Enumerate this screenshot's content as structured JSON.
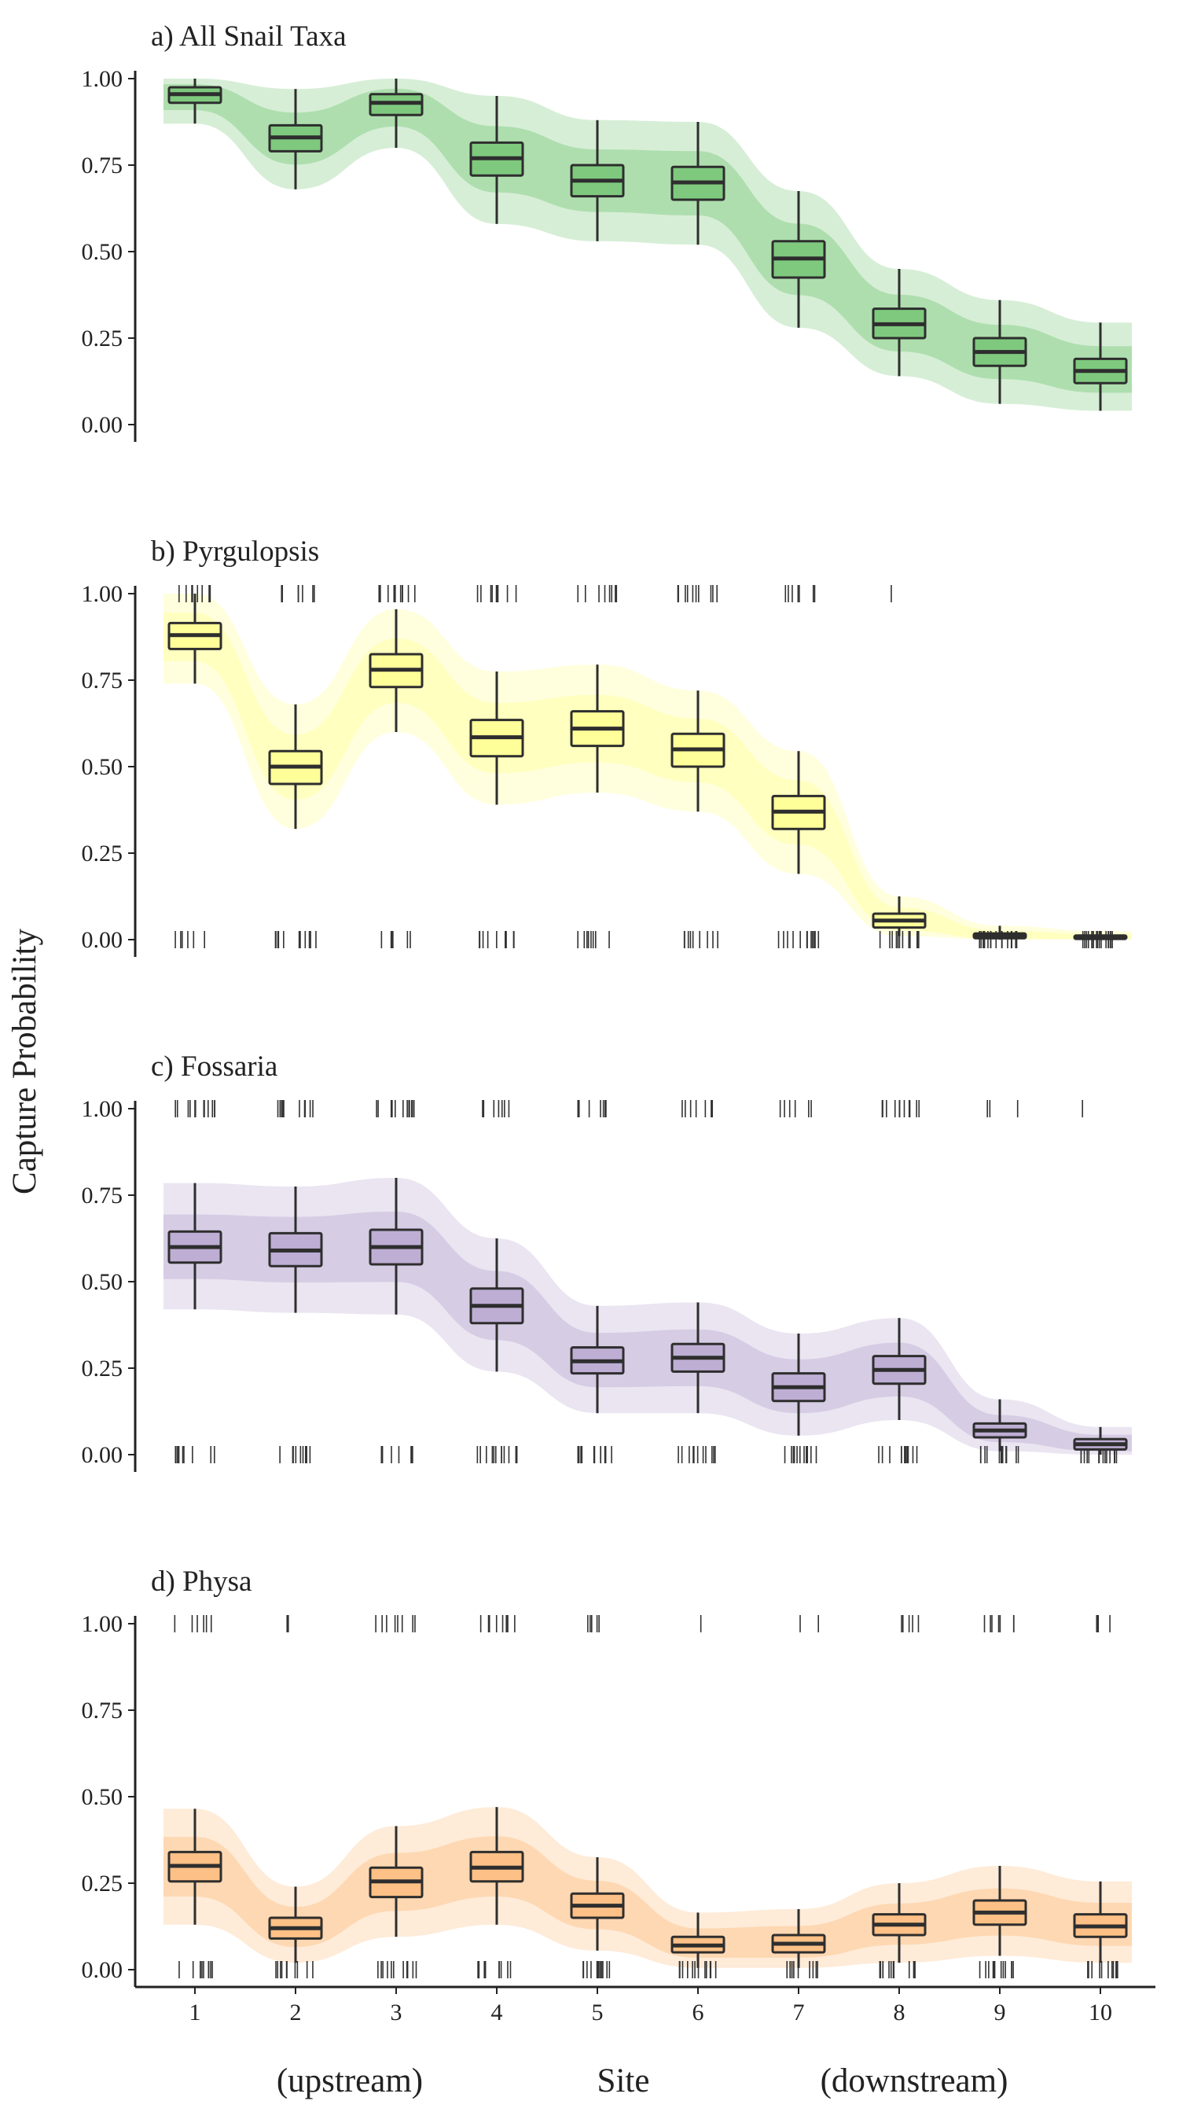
{
  "chart_data": {
    "type": "box",
    "ylabel": "Capture Probability",
    "xlabel": "Site",
    "xlabel_left": "(upstream)",
    "xlabel_right": "(downstream)",
    "x_ticks": [
      "1",
      "2",
      "3",
      "4",
      "5",
      "6",
      "7",
      "8",
      "9",
      "10"
    ],
    "y_ticks": [
      "0.00",
      "0.25",
      "0.50",
      "0.75",
      "1.00"
    ],
    "ylim": [
      0,
      1
    ],
    "grid": false,
    "panels": [
      {
        "title": "a) All Snail Taxa",
        "color": "#7fc97f",
        "boxes": [
          {
            "site": 1,
            "whisker_low": 0.87,
            "q1": 0.93,
            "median": 0.955,
            "q3": 0.975,
            "whisker_high": 1.0
          },
          {
            "site": 2,
            "whisker_low": 0.68,
            "q1": 0.79,
            "median": 0.83,
            "q3": 0.865,
            "whisker_high": 0.97
          },
          {
            "site": 3,
            "whisker_low": 0.8,
            "q1": 0.895,
            "median": 0.93,
            "q3": 0.955,
            "whisker_high": 1.0
          },
          {
            "site": 4,
            "whisker_low": 0.58,
            "q1": 0.72,
            "median": 0.77,
            "q3": 0.815,
            "whisker_high": 0.95
          },
          {
            "site": 5,
            "whisker_low": 0.53,
            "q1": 0.66,
            "median": 0.705,
            "q3": 0.75,
            "whisker_high": 0.88
          },
          {
            "site": 6,
            "whisker_low": 0.52,
            "q1": 0.65,
            "median": 0.7,
            "q3": 0.745,
            "whisker_high": 0.875
          },
          {
            "site": 7,
            "whisker_low": 0.28,
            "q1": 0.425,
            "median": 0.48,
            "q3": 0.53,
            "whisker_high": 0.675
          },
          {
            "site": 8,
            "whisker_low": 0.14,
            "q1": 0.25,
            "median": 0.29,
            "q3": 0.335,
            "whisker_high": 0.45
          },
          {
            "site": 9,
            "whisker_low": 0.06,
            "q1": 0.17,
            "median": 0.21,
            "q3": 0.25,
            "whisker_high": 0.36
          },
          {
            "site": 10,
            "whisker_low": 0.04,
            "q1": 0.12,
            "median": 0.155,
            "q3": 0.19,
            "whisker_high": 0.295
          }
        ],
        "rug_top_counts": [
          0,
          0,
          0,
          0,
          0,
          0,
          0,
          0,
          0,
          0
        ],
        "rug_bottom_counts": [
          0,
          0,
          0,
          0,
          0,
          0,
          0,
          0,
          0,
          0
        ]
      },
      {
        "title": "b) Pyrgulopsis",
        "color": "#ffff99",
        "boxes": [
          {
            "site": 1,
            "whisker_low": 0.74,
            "q1": 0.84,
            "median": 0.88,
            "q3": 0.915,
            "whisker_high": 1.0
          },
          {
            "site": 2,
            "whisker_low": 0.32,
            "q1": 0.45,
            "median": 0.5,
            "q3": 0.545,
            "whisker_high": 0.68
          },
          {
            "site": 3,
            "whisker_low": 0.6,
            "q1": 0.73,
            "median": 0.78,
            "q3": 0.825,
            "whisker_high": 0.955
          },
          {
            "site": 4,
            "whisker_low": 0.39,
            "q1": 0.53,
            "median": 0.585,
            "q3": 0.635,
            "whisker_high": 0.775
          },
          {
            "site": 5,
            "whisker_low": 0.425,
            "q1": 0.56,
            "median": 0.61,
            "q3": 0.66,
            "whisker_high": 0.795
          },
          {
            "site": 6,
            "whisker_low": 0.37,
            "q1": 0.5,
            "median": 0.55,
            "q3": 0.595,
            "whisker_high": 0.72
          },
          {
            "site": 7,
            "whisker_low": 0.19,
            "q1": 0.32,
            "median": 0.37,
            "q3": 0.415,
            "whisker_high": 0.545
          },
          {
            "site": 8,
            "whisker_low": 0.01,
            "q1": 0.035,
            "median": 0.055,
            "q3": 0.075,
            "whisker_high": 0.125
          },
          {
            "site": 9,
            "whisker_low": 0.0,
            "q1": 0.004,
            "median": 0.01,
            "q3": 0.018,
            "whisker_high": 0.04
          },
          {
            "site": 10,
            "whisker_low": 0.0,
            "q1": 0.002,
            "median": 0.006,
            "q3": 0.012,
            "whisker_high": 0.025
          }
        ],
        "rug_top_counts": [
          10,
          8,
          11,
          9,
          10,
          10,
          7,
          1,
          0,
          0
        ],
        "rug_bottom_counts": [
          6,
          12,
          6,
          10,
          8,
          9,
          12,
          12,
          16,
          18
        ]
      },
      {
        "title": "c) Fossaria",
        "color": "#beaed4",
        "boxes": [
          {
            "site": 1,
            "whisker_low": 0.42,
            "q1": 0.555,
            "median": 0.6,
            "q3": 0.645,
            "whisker_high": 0.785
          },
          {
            "site": 2,
            "whisker_low": 0.41,
            "q1": 0.545,
            "median": 0.59,
            "q3": 0.64,
            "whisker_high": 0.775
          },
          {
            "site": 3,
            "whisker_low": 0.405,
            "q1": 0.55,
            "median": 0.6,
            "q3": 0.65,
            "whisker_high": 0.8
          },
          {
            "site": 4,
            "whisker_low": 0.24,
            "q1": 0.38,
            "median": 0.43,
            "q3": 0.48,
            "whisker_high": 0.625
          },
          {
            "site": 5,
            "whisker_low": 0.12,
            "q1": 0.235,
            "median": 0.27,
            "q3": 0.31,
            "whisker_high": 0.43
          },
          {
            "site": 6,
            "whisker_low": 0.12,
            "q1": 0.24,
            "median": 0.28,
            "q3": 0.32,
            "whisker_high": 0.44
          },
          {
            "site": 7,
            "whisker_low": 0.055,
            "q1": 0.155,
            "median": 0.195,
            "q3": 0.235,
            "whisker_high": 0.35
          },
          {
            "site": 8,
            "whisker_low": 0.1,
            "q1": 0.205,
            "median": 0.245,
            "q3": 0.285,
            "whisker_high": 0.395
          },
          {
            "site": 9,
            "whisker_low": 0.01,
            "q1": 0.05,
            "median": 0.07,
            "q3": 0.09,
            "whisker_high": 0.16
          },
          {
            "site": 10,
            "whisker_low": 0.0,
            "q1": 0.015,
            "median": 0.03,
            "q3": 0.045,
            "whisker_high": 0.08
          }
        ],
        "rug_top_counts": [
          12,
          11,
          12,
          8,
          8,
          7,
          6,
          11,
          3,
          1
        ],
        "rug_bottom_counts": [
          10,
          9,
          7,
          12,
          12,
          12,
          12,
          12,
          13,
          14
        ]
      },
      {
        "title": "d) Physa",
        "color": "#fdc086",
        "boxes": [
          {
            "site": 1,
            "whisker_low": 0.13,
            "q1": 0.255,
            "median": 0.3,
            "q3": 0.34,
            "whisker_high": 0.465
          },
          {
            "site": 2,
            "whisker_low": 0.02,
            "q1": 0.09,
            "median": 0.12,
            "q3": 0.15,
            "whisker_high": 0.24
          },
          {
            "site": 3,
            "whisker_low": 0.095,
            "q1": 0.21,
            "median": 0.255,
            "q3": 0.295,
            "whisker_high": 0.415
          },
          {
            "site": 4,
            "whisker_low": 0.13,
            "q1": 0.255,
            "median": 0.295,
            "q3": 0.34,
            "whisker_high": 0.47
          },
          {
            "site": 5,
            "whisker_low": 0.055,
            "q1": 0.15,
            "median": 0.185,
            "q3": 0.22,
            "whisker_high": 0.325
          },
          {
            "site": 6,
            "whisker_low": 0.005,
            "q1": 0.05,
            "median": 0.07,
            "q3": 0.095,
            "whisker_high": 0.165
          },
          {
            "site": 7,
            "whisker_low": 0.005,
            "q1": 0.05,
            "median": 0.075,
            "q3": 0.1,
            "whisker_high": 0.175
          },
          {
            "site": 8,
            "whisker_low": 0.02,
            "q1": 0.1,
            "median": 0.13,
            "q3": 0.16,
            "whisker_high": 0.25
          },
          {
            "site": 9,
            "whisker_low": 0.04,
            "q1": 0.13,
            "median": 0.165,
            "q3": 0.2,
            "whisker_high": 0.3
          },
          {
            "site": 10,
            "whisker_low": 0.02,
            "q1": 0.095,
            "median": 0.125,
            "q3": 0.16,
            "whisker_high": 0.255
          }
        ],
        "rug_top_counts": [
          6,
          3,
          8,
          9,
          5,
          1,
          2,
          5,
          7,
          4
        ],
        "rug_bottom_counts": [
          10,
          10,
          11,
          10,
          12,
          12,
          11,
          12,
          12,
          12
        ]
      }
    ]
  }
}
